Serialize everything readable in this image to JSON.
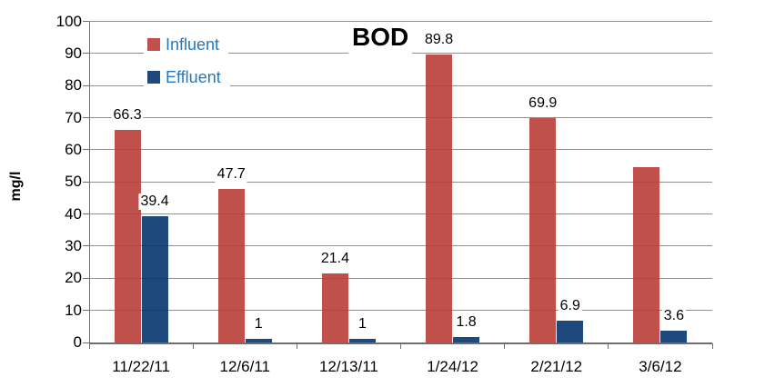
{
  "chart_data": {
    "type": "bar",
    "title": "BOD",
    "ylabel": "mg/l",
    "categories": [
      "11/22/11",
      "12/6/11",
      "12/13/11",
      "1/24/12",
      "2/21/12",
      "3/6/12"
    ],
    "series": [
      {
        "name": "Influent",
        "color": "#C0504D",
        "values": [
          66.3,
          47.7,
          21.4,
          89.8,
          69.9,
          54.5
        ],
        "labels": [
          "66.3",
          "47.7",
          "21.4",
          "89.8",
          "69.9",
          ""
        ]
      },
      {
        "name": "Effluent",
        "color": "#1F497D",
        "values": [
          39.4,
          1,
          1,
          1.8,
          6.9,
          3.6
        ],
        "labels": [
          "39.4",
          "1",
          "1",
          "1.8",
          "6.9",
          "3.6"
        ]
      }
    ],
    "y_axis": {
      "min": 0,
      "max": 100,
      "step": 10,
      "tick_labels": [
        "0",
        "10",
        "20",
        "30",
        "40",
        "50",
        "60",
        "70",
        "80",
        "90",
        "100"
      ]
    },
    "legend": {
      "position": "inside-top-left",
      "entries": [
        "Influent",
        "Effluent"
      ]
    },
    "grid": true,
    "colors": {
      "legend_text": "#2279BE",
      "gridline": "#8F8F8F",
      "axis": "#6E6E6E",
      "label_text": "#000000",
      "background": "#FFFFFF"
    }
  }
}
